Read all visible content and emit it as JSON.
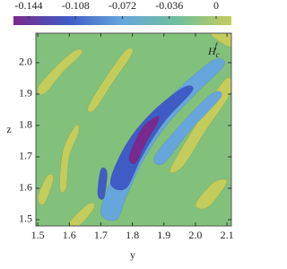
{
  "chart_data": {
    "type": "contour",
    "xlabel": "y",
    "ylabel": "z",
    "annotation": {
      "base": "H",
      "sub": "c",
      "sup": "f"
    },
    "xlim": [
      1.494,
      2.114
    ],
    "ylim": [
      1.48,
      2.094
    ],
    "xticks": [
      1.5,
      1.6,
      1.7,
      1.8,
      1.9,
      {
        "value": 2.0,
        "label": "2.0"
      },
      2.1
    ],
    "yticks": [
      1.5,
      1.6,
      1.7,
      1.8,
      1.9,
      {
        "value": 2.0,
        "label": "2.0"
      }
    ],
    "colorbar": {
      "ticks": [
        -0.144,
        -0.108,
        -0.072,
        -0.036,
        0
      ],
      "colors": [
        "#7a2a8c",
        "#3f5cc6",
        "#67a6dc",
        "#6fbf9c",
        "#c4cc5c"
      ]
    },
    "regions": [
      {
        "level": 0,
        "points": [
          [
            1.5,
            1.92
          ],
          [
            1.56,
            1.99
          ],
          [
            1.62,
            2.04
          ],
          [
            1.64,
            2.03
          ],
          [
            1.58,
            1.97
          ],
          [
            1.52,
            1.9
          ]
        ]
      },
      {
        "level": 0,
        "points": [
          [
            1.57,
            1.6
          ],
          [
            1.58,
            1.72
          ],
          [
            1.62,
            1.8
          ],
          [
            1.63,
            1.78
          ],
          [
            1.6,
            1.7
          ],
          [
            1.59,
            1.6
          ]
        ]
      },
      {
        "level": 0,
        "points": [
          [
            1.5,
            1.57
          ],
          [
            1.53,
            1.64
          ],
          [
            1.55,
            1.63
          ],
          [
            1.52,
            1.55
          ]
        ]
      },
      {
        "level": 0,
        "points": [
          [
            1.6,
            1.49
          ],
          [
            1.66,
            1.55
          ],
          [
            1.68,
            1.54
          ],
          [
            1.63,
            1.48
          ]
        ]
      },
      {
        "level": 0,
        "points": [
          [
            1.92,
            1.66
          ],
          [
            2.0,
            1.8
          ],
          [
            2.08,
            1.93
          ],
          [
            2.11,
            1.95
          ],
          [
            2.11,
            1.9
          ],
          [
            2.03,
            1.78
          ],
          [
            1.96,
            1.67
          ]
        ]
      },
      {
        "level": 0,
        "points": [
          [
            2.05,
            2.09
          ],
          [
            2.11,
            2.05
          ],
          [
            2.114,
            2.09
          ]
        ]
      },
      {
        "level": 0,
        "points": [
          [
            1.66,
            1.86
          ],
          [
            1.72,
            1.96
          ],
          [
            1.78,
            2.04
          ],
          [
            1.8,
            2.03
          ],
          [
            1.74,
            1.94
          ],
          [
            1.68,
            1.85
          ]
        ]
      },
      {
        "level": 0,
        "points": [
          [
            2.0,
            1.55
          ],
          [
            2.06,
            1.62
          ],
          [
            2.1,
            1.62
          ],
          [
            2.04,
            1.54
          ]
        ]
      },
      {
        "level": -0.072,
        "points": [
          [
            1.7,
            1.52
          ],
          [
            1.73,
            1.62
          ],
          [
            1.78,
            1.72
          ],
          [
            1.86,
            1.83
          ],
          [
            1.96,
            1.93
          ],
          [
            2.06,
            2.01
          ],
          [
            2.09,
            1.99
          ],
          [
            2.0,
            1.9
          ],
          [
            1.9,
            1.79
          ],
          [
            1.83,
            1.68
          ],
          [
            1.78,
            1.57
          ],
          [
            1.75,
            1.5
          ]
        ]
      },
      {
        "level": -0.072,
        "points": [
          [
            1.87,
            1.7
          ],
          [
            1.95,
            1.8
          ],
          [
            2.05,
            1.9
          ],
          [
            2.08,
            1.89
          ],
          [
            1.98,
            1.78
          ],
          [
            1.9,
            1.68
          ]
        ]
      },
      {
        "level": -0.108,
        "points": [
          [
            1.73,
            1.62
          ],
          [
            1.78,
            1.74
          ],
          [
            1.86,
            1.84
          ],
          [
            1.96,
            1.92
          ],
          [
            1.99,
            1.91
          ],
          [
            1.9,
            1.81
          ],
          [
            1.83,
            1.7
          ],
          [
            1.78,
            1.6
          ]
        ]
      },
      {
        "level": -0.108,
        "points": [
          [
            1.69,
            1.58
          ],
          [
            1.7,
            1.66
          ],
          [
            1.72,
            1.65
          ],
          [
            1.71,
            1.57
          ]
        ]
      },
      {
        "level": -0.144,
        "points": [
          [
            1.79,
            1.7
          ],
          [
            1.83,
            1.79
          ],
          [
            1.88,
            1.83
          ],
          [
            1.88,
            1.81
          ],
          [
            1.84,
            1.74
          ],
          [
            1.81,
            1.68
          ]
        ]
      }
    ]
  }
}
